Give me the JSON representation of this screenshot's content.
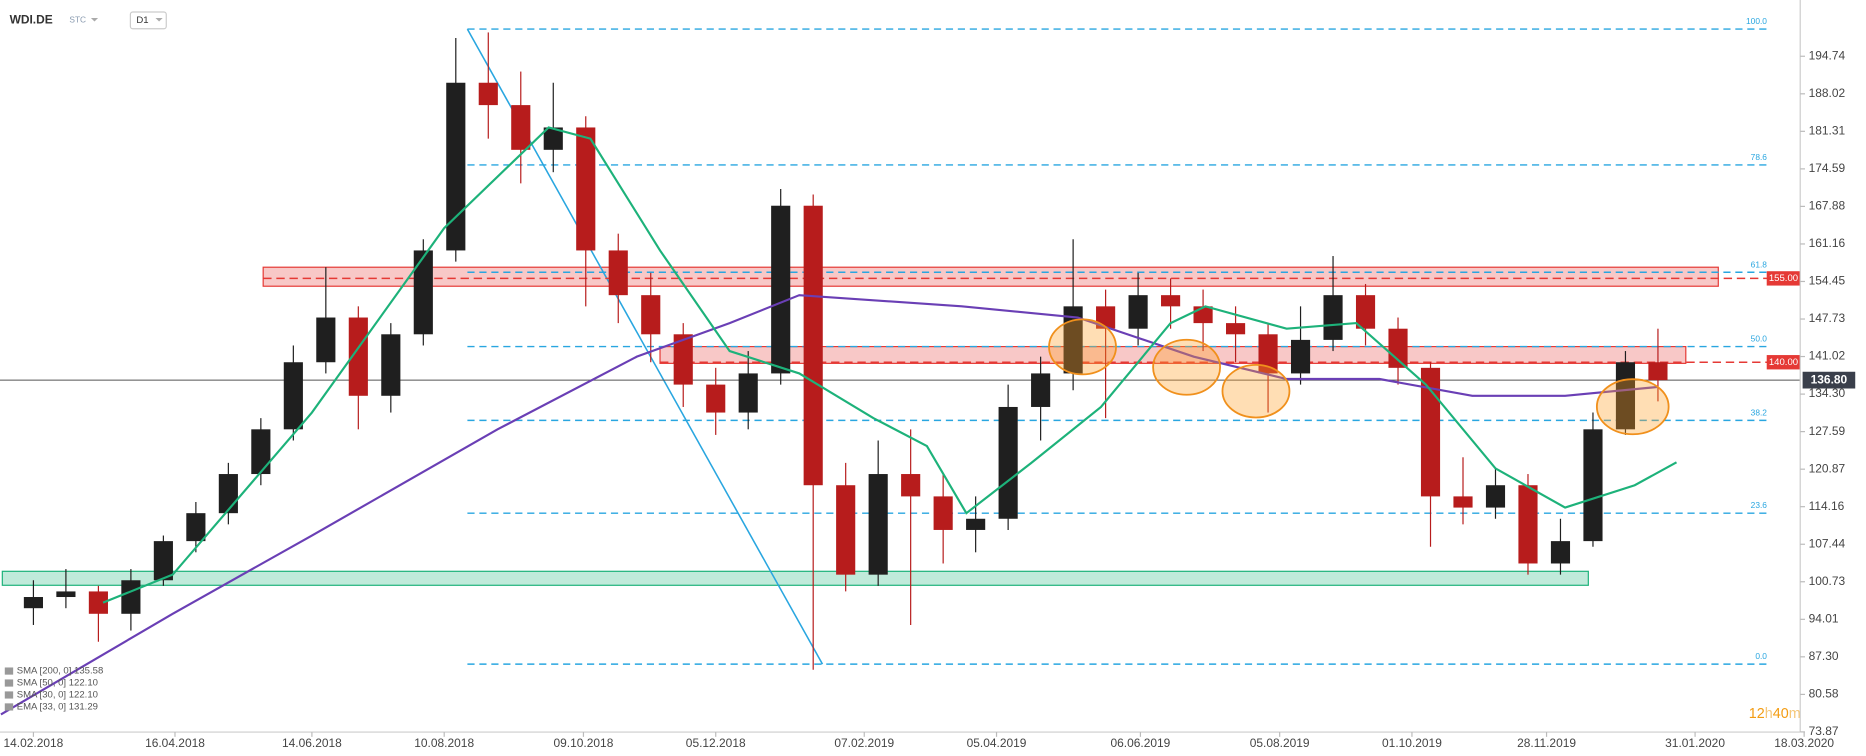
{
  "header": {
    "symbol": "WDI.DE",
    "group": "STC",
    "interval": "D1"
  },
  "chart_data": {
    "type": "candlestick",
    "xlim": [
      -14.4,
      761.3
    ],
    "ylim": [
      73.2,
      204.8
    ],
    "xticks": [
      {
        "value": 0,
        "label": "14.02.2018"
      },
      {
        "value": 61,
        "label": "16.04.2018"
      },
      {
        "value": 120,
        "label": "14.06.2018"
      },
      {
        "value": 177,
        "label": "10.08.2018"
      },
      {
        "value": 237,
        "label": "09.10.2018"
      },
      {
        "value": 294,
        "label": "05.12.2018"
      },
      {
        "value": 358,
        "label": "07.02.2019"
      },
      {
        "value": 415,
        "label": "05.04.2019"
      },
      {
        "value": 477,
        "label": "06.06.2019"
      },
      {
        "value": 537,
        "label": "05.08.2019"
      },
      {
        "value": 594,
        "label": "01.10.2019"
      },
      {
        "value": 652,
        "label": "28.11.2019"
      },
      {
        "value": 716,
        "label": "31.01.2020"
      },
      {
        "value": 763,
        "label": "18.03.2020"
      }
    ],
    "yticks": [
      194.74,
      188.02,
      181.31,
      174.59,
      167.88,
      161.16,
      154.45,
      147.73,
      141.02,
      {
        "value": 134.3,
        "label": "134.30"
      },
      127.59,
      120.87,
      114.16,
      107.44,
      100.73,
      94.01,
      {
        "value": 87.3,
        "label": "87.30"
      },
      80.58,
      73.87
    ],
    "up_color": "#1f1f1f",
    "down_color": "#b71c1c",
    "x": [
      0,
      14,
      28,
      42,
      56,
      70,
      84,
      98,
      112,
      126,
      140,
      154,
      168,
      182,
      196,
      210,
      224,
      238,
      252,
      266,
      280,
      294,
      308,
      322,
      336,
      350,
      364,
      378,
      392,
      406,
      420,
      434,
      448,
      462,
      476,
      490,
      504,
      518,
      532,
      546,
      560,
      574,
      588,
      602,
      616,
      630,
      644,
      658,
      672,
      686,
      700
    ],
    "open": [
      96,
      98,
      99,
      95,
      101,
      108,
      113,
      120,
      128,
      140,
      148,
      134,
      145,
      160,
      190,
      186,
      178,
      182,
      160,
      152,
      145,
      136,
      131,
      138,
      168,
      118,
      102,
      120,
      116,
      110,
      112,
      132,
      138,
      150,
      146,
      152,
      150,
      147,
      145,
      138,
      144,
      152,
      146,
      139,
      116,
      114,
      118,
      104,
      108,
      128,
      140
    ],
    "high": [
      101,
      103,
      100,
      103,
      109,
      115,
      122,
      130,
      143,
      157,
      150,
      147,
      162,
      198,
      199,
      192,
      190,
      184,
      163,
      156,
      147,
      139,
      142,
      171,
      170,
      122,
      126,
      128,
      120,
      116,
      136,
      141,
      162,
      153,
      156,
      155,
      153,
      150,
      147,
      150,
      159,
      154,
      148,
      140,
      123,
      121,
      120,
      112,
      131,
      142,
      146
    ],
    "low": [
      93,
      96,
      90,
      92,
      100,
      106,
      111,
      118,
      126,
      138,
      128,
      131,
      143,
      158,
      180,
      172,
      174,
      150,
      147,
      140,
      132,
      127,
      128,
      136,
      85,
      99,
      100,
      93,
      104,
      106,
      110,
      126,
      135,
      130,
      143,
      146,
      142,
      140,
      131,
      136,
      142,
      143,
      136,
      107,
      111,
      112,
      102,
      102,
      107,
      127,
      133
    ],
    "close": [
      98,
      99,
      95,
      101,
      108,
      113,
      120,
      128,
      140,
      148,
      134,
      145,
      160,
      190,
      186,
      178,
      182,
      160,
      152,
      145,
      136,
      131,
      138,
      168,
      118,
      102,
      120,
      116,
      110,
      112,
      132,
      138,
      150,
      146,
      152,
      150,
      147,
      145,
      138,
      144,
      152,
      146,
      139,
      116,
      114,
      118,
      104,
      108,
      128,
      140,
      136.8
    ],
    "indicators": [
      {
        "name": "SMA [200, 0] 135.58",
        "color": "#6a3fb5",
        "x": [
          -14,
          60,
          120,
          200,
          260,
          300,
          330,
          400,
          450,
          500,
          540,
          580,
          620,
          660,
          700
        ],
        "values": [
          77,
          95,
          109,
          128,
          141,
          147,
          152,
          150,
          148,
          141,
          137,
          137,
          134,
          134,
          135.58
        ]
      },
      {
        "name": "SMA [50, 0] 122.10",
        "color": "#1db27a",
        "x": [
          30,
          60,
          120,
          177,
          222,
          240,
          270,
          300,
          330,
          362,
          385,
          402,
          430,
          460,
          490,
          505,
          540,
          570,
          600,
          630,
          660,
          690,
          708
        ],
        "values": [
          97,
          102,
          131,
          164,
          182,
          180,
          160,
          142,
          138,
          130,
          125,
          113,
          122,
          132,
          147,
          150,
          146,
          147,
          136,
          121,
          114,
          118,
          122.1
        ]
      },
      {
        "name": "SMA [30, 0] 122.10"
      },
      {
        "name": "EMA [33, 0] 131.29"
      }
    ],
    "fib": {
      "x": [
        187,
        748
      ],
      "color": "#29a6e0",
      "levels": [
        {
          "label": "100.0",
          "price": 199.6
        },
        {
          "label": "78.6",
          "price": 175.3
        },
        {
          "label": "61.8",
          "price": 156.1
        },
        {
          "label": "50.0",
          "price": 142.8
        },
        {
          "label": "38.2",
          "price": 129.6
        },
        {
          "label": "23.6",
          "price": 113
        },
        {
          "label": "0.0",
          "price": 86
        }
      ]
    },
    "trendline": {
      "x": [
        187,
        340
      ],
      "y": [
        199.6,
        86
      ],
      "color": "#29a6e0"
    },
    "zones": [
      {
        "x": [
          99,
          726
        ],
        "y": [
          153.6,
          157
        ],
        "color": "#e53935"
      },
      {
        "x": [
          270,
          712
        ],
        "y": [
          139.8,
          142.8
        ],
        "color": "#e53935"
      },
      {
        "x": [
          -13.4,
          670
        ],
        "y": [
          100.1,
          102.6
        ],
        "color": "#1db27a"
      }
    ],
    "levels": [
      {
        "value": 155,
        "label": "155.00",
        "x": [
          99,
          747
        ],
        "color": "#e53935"
      },
      {
        "value": 140,
        "label": "140.00",
        "x": [
          270,
          747
        ],
        "color": "#e53935"
      }
    ],
    "last_price": {
      "value": 136.8,
      "label": "136.80"
    },
    "timer": [
      "12",
      "h",
      "40",
      "m"
    ]
  }
}
